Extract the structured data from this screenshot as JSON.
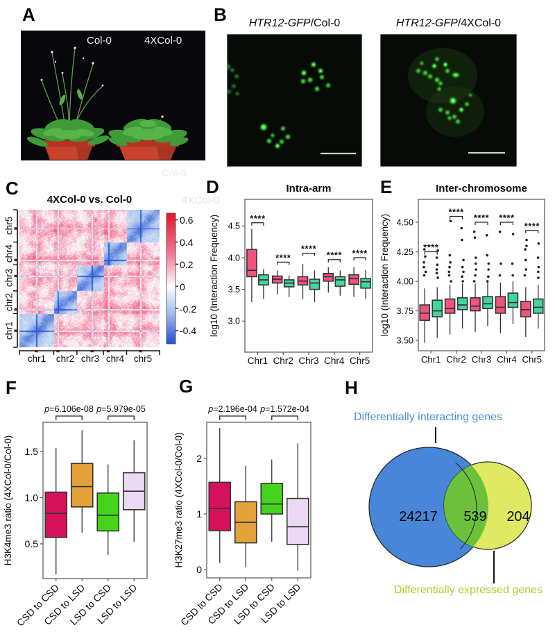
{
  "panels": {
    "a": {
      "label": "A",
      "pot_labels": [
        "Col-0",
        "4XCol-0"
      ]
    },
    "b": {
      "label": "B",
      "images": [
        {
          "title_italic": "HTR12-GFP",
          "title_rest": "/Col-0"
        },
        {
          "title_italic": "HTR12-GFP",
          "title_rest": "/4XCol-0"
        }
      ]
    },
    "c": {
      "label": "C",
      "title": "4XCol-0 vs. Col-0",
      "x_ticks": [
        "chr1",
        "chr2",
        "chr3",
        "chr4",
        "chr5"
      ],
      "y_ticks": [
        "chr1",
        "chr2",
        "chr3",
        "chr4",
        "chr5"
      ],
      "colorbar_labels": [
        "0.6",
        "0.4",
        "0.2",
        "0",
        "-0.2",
        "-0.4"
      ]
    },
    "d": {
      "label": "D"
    },
    "e": {
      "label": "E"
    },
    "f": {
      "label": "F"
    },
    "g": {
      "label": "G"
    },
    "h": {
      "label": "H"
    }
  },
  "ghost_labels": [
    "Col-0",
    "4XCol-0"
  ],
  "colors": {
    "box_pink": "#F0537C",
    "box_green": "#41D79B",
    "crimson": "#D6115C",
    "orange": "#E3A33A",
    "bright_green": "#44D41C",
    "lavender": "#EBD9F5",
    "venn_blue": "#4886D9",
    "venn_yellow": "#DFE961",
    "venn_overlap": "#6CC13C",
    "venn_blue_text": "#4A90D8",
    "venn_yellow_text": "#B2CC25"
  },
  "chart_data": [
    {
      "id": "c",
      "type": "heatmap",
      "title": "4XCol-0 vs. Col-0",
      "x_ticks": [
        "chr1",
        "chr2",
        "chr3",
        "chr4",
        "chr5"
      ],
      "y_ticks": [
        "chr1",
        "chr2",
        "chr3",
        "chr4",
        "chr5"
      ],
      "colorbar_ticks": [
        0.6,
        0.4,
        0.2,
        0,
        -0.2,
        -0.4
      ],
      "value_range": [
        -0.52,
        0.66
      ],
      "chrom_fractions": [
        0.245,
        0.165,
        0.19,
        0.165,
        0.235
      ],
      "centromere_positions": [
        0.49,
        0.18,
        0.57,
        0.21,
        0.42
      ],
      "pattern": "blue intra-chromosome diagonal blocks, pink/red inter-chromosome with red pericentromeric bands"
    },
    {
      "id": "d",
      "type": "box",
      "title": "Intra-arm",
      "ylabel": "log10 (Interaction Frequency)",
      "yticks": [
        {
          "v": 4.5,
          "t": "4.5"
        },
        {
          "v": 4.0,
          "t": "4.0"
        },
        {
          "v": 3.5,
          "t": "3.5"
        },
        {
          "v": 3.0,
          "t": "3.0"
        }
      ],
      "categories": [
        "Chr1",
        "Chr2",
        "Chr3",
        "Chr4",
        "Chr5"
      ],
      "series": [
        {
          "name": "series-pink",
          "color": "#F0537C",
          "boxes": [
            [
              3.3,
              3.7,
              3.8,
              4.13,
              4.45
            ],
            [
              3.42,
              3.6,
              3.66,
              3.71,
              3.8
            ],
            [
              3.35,
              3.57,
              3.63,
              3.7,
              3.9
            ],
            [
              3.45,
              3.63,
              3.7,
              3.75,
              3.85
            ],
            [
              3.38,
              3.58,
              3.67,
              3.73,
              3.85
            ]
          ],
          "outliers": [
            [],
            [],
            [],
            [],
            []
          ]
        },
        {
          "name": "series-green",
          "color": "#41D79B",
          "boxes": [
            [
              3.35,
              3.57,
              3.65,
              3.73,
              3.82
            ],
            [
              3.38,
              3.54,
              3.6,
              3.65,
              3.72
            ],
            [
              3.3,
              3.5,
              3.6,
              3.66,
              3.8
            ],
            [
              3.4,
              3.55,
              3.65,
              3.7,
              3.8
            ],
            [
              3.35,
              3.52,
              3.62,
              3.67,
              3.8
            ]
          ],
          "outliers": [
            [],
            [],
            [],
            [],
            []
          ]
        }
      ],
      "significance": [
        {
          "label": "****",
          "y": 4.55
        },
        {
          "label": "****",
          "y": 3.93
        },
        {
          "label": "****",
          "y": 4.07
        },
        {
          "label": "****",
          "y": 3.97
        },
        {
          "label": "****",
          "y": 4.0
        }
      ]
    },
    {
      "id": "e",
      "type": "box",
      "title": "Inter-chromosome",
      "ylabel": "log10 (Interaction Frequency)",
      "yticks": [
        {
          "v": 4.5,
          "t": "4.50"
        },
        {
          "v": 4.25,
          "t": "4.25"
        },
        {
          "v": 4.0,
          "t": "4.00"
        },
        {
          "v": 3.75,
          "t": "3.75"
        },
        {
          "v": 3.5,
          "t": "3.50"
        }
      ],
      "categories": [
        "Chr1",
        "Chr2",
        "Chr3",
        "Chr4",
        "Chr5"
      ],
      "series": [
        {
          "name": "series-pink",
          "color": "#F0537C",
          "boxes": [
            [
              3.48,
              3.67,
              3.73,
              3.8,
              3.94
            ],
            [
              3.55,
              3.73,
              3.77,
              3.85,
              3.97
            ],
            [
              3.57,
              3.75,
              3.79,
              3.86,
              3.98
            ],
            [
              3.56,
              3.73,
              3.78,
              3.87,
              3.99
            ],
            [
              3.53,
              3.7,
              3.76,
              3.83,
              3.95
            ]
          ],
          "outliers": [
            [
              4.05,
              4.08,
              4.12,
              4.16,
              4.21,
              4.27
            ],
            [
              4.0,
              4.05,
              4.08,
              4.12,
              4.16,
              4.22,
              4.51
            ],
            [
              4.0,
              4.05,
              4.1,
              4.15,
              4.2,
              4.37,
              4.42
            ],
            [
              4.05,
              4.15,
              4.42
            ],
            [
              4.05,
              4.1,
              4.18,
              4.27,
              4.3,
              4.35
            ]
          ]
        },
        {
          "name": "series-green",
          "color": "#41D79B",
          "boxes": [
            [
              3.52,
              3.7,
              3.75,
              3.84,
              3.95
            ],
            [
              3.6,
              3.76,
              3.8,
              3.86,
              3.98
            ],
            [
              3.62,
              3.77,
              3.81,
              3.87,
              3.99
            ],
            [
              3.64,
              3.78,
              3.82,
              3.9,
              4.0
            ],
            [
              3.6,
              3.73,
              3.78,
              3.85,
              3.97
            ]
          ],
          "outliers": [
            [
              4.03,
              4.07,
              4.1,
              4.14,
              4.2,
              4.26
            ],
            [
              4.0,
              4.04,
              4.08,
              4.12,
              4.18,
              4.35,
              4.45
            ],
            [
              4.0,
              4.04,
              4.1,
              4.15,
              4.22,
              4.39
            ],
            [
              4.05,
              4.15,
              4.4
            ],
            [
              4.03,
              4.08,
              4.12,
              4.2,
              4.32
            ]
          ]
        }
      ],
      "significance": [
        {
          "label": "****",
          "y": 4.25
        },
        {
          "label": "****",
          "y": 4.55
        },
        {
          "label": "****",
          "y": 4.5
        },
        {
          "label": "****",
          "y": 4.5
        },
        {
          "label": "****",
          "y": 4.43
        }
      ]
    },
    {
      "id": "f",
      "type": "box",
      "title": "",
      "ylabel": "H3K4me3 ratio (4XCol-0/Col-0)",
      "yticks": [
        {
          "v": 1.5,
          "t": "1.5"
        },
        {
          "v": 1.0,
          "t": "1.0"
        },
        {
          "v": 0.5,
          "t": "0.5"
        }
      ],
      "categories": [
        "CSD to CSD",
        "CSD to LSD",
        "LSD to CSD",
        "LSD to LSD"
      ],
      "colors": [
        "#D6115C",
        "#E3A33A",
        "#44D41C",
        "#EBD9F5"
      ],
      "boxes": [
        [
          0.17,
          0.57,
          0.83,
          1.06,
          1.54
        ],
        [
          0.62,
          0.9,
          1.12,
          1.37,
          1.73
        ],
        [
          0.38,
          0.64,
          0.81,
          1.05,
          1.36
        ],
        [
          0.52,
          0.87,
          1.07,
          1.27,
          1.62
        ]
      ],
      "significance": [
        {
          "p": "p",
          "rest": "=6.106e-08",
          "pair": [
            0,
            1
          ]
        },
        {
          "p": "p",
          "rest": "=5.979e-05",
          "pair": [
            2,
            3
          ]
        }
      ]
    },
    {
      "id": "g",
      "type": "box",
      "title": "",
      "ylabel": "H3K27me3 ratio (4XCol-0/Col-0)",
      "yticks": [
        {
          "v": 2,
          "t": "2"
        },
        {
          "v": 1,
          "t": "1"
        },
        {
          "v": 0,
          "t": "0"
        }
      ],
      "categories": [
        "CSD to CSD",
        "CSD to LSD",
        "LSD to CSD",
        "LSD to LSD"
      ],
      "colors": [
        "#D6115C",
        "#E3A33A",
        "#44D41C",
        "#EBD9F5"
      ],
      "boxes": [
        [
          0.12,
          0.7,
          1.1,
          1.57,
          2.55
        ],
        [
          0.05,
          0.48,
          0.85,
          1.22,
          1.87
        ],
        [
          0.5,
          1.0,
          1.18,
          1.55,
          1.98
        ],
        [
          -0.02,
          0.45,
          0.77,
          1.28,
          2.27
        ]
      ],
      "significance": [
        {
          "p": "p",
          "rest": "=2.196e-04",
          "pair": [
            0,
            1
          ]
        },
        {
          "p": "p",
          "rest": "=1.572e-04",
          "pair": [
            2,
            3
          ]
        }
      ]
    },
    {
      "id": "h",
      "type": "venn",
      "sets": [
        {
          "label": "Differentially interacting genes",
          "value": 24217,
          "color": "#4886D9"
        },
        {
          "label": "Differentially expressed genes",
          "value": 204,
          "color": "#DFE961"
        }
      ],
      "overlap": {
        "value": 539,
        "color": "#6CC13C"
      }
    }
  ]
}
